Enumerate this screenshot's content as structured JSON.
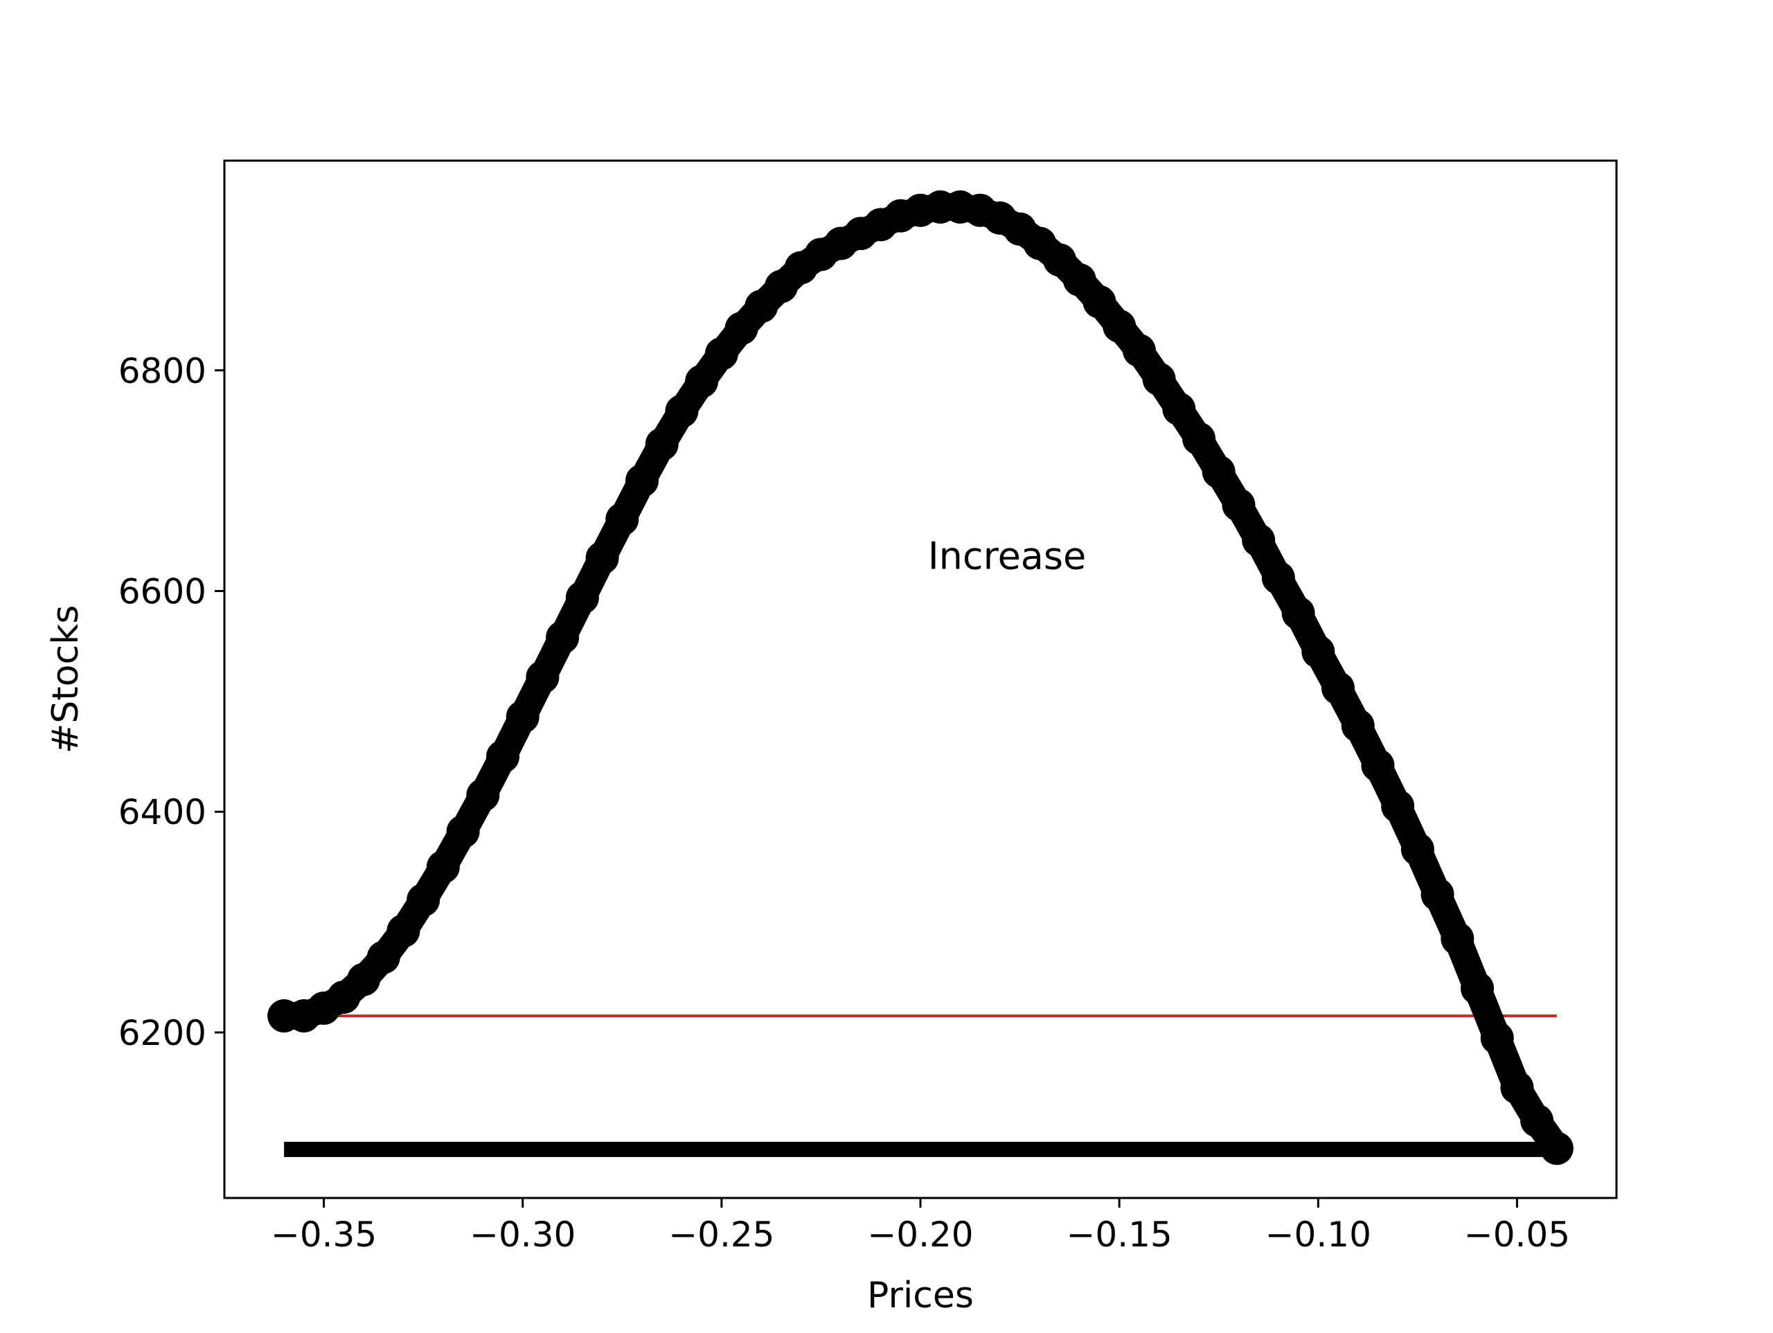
{
  "chart_data": {
    "type": "line",
    "title": "",
    "xlabel": "Prices",
    "ylabel": "#Stocks",
    "xlim": [
      -0.375,
      -0.025
    ],
    "ylim": [
      6050,
      6990
    ],
    "grid": false,
    "legend": "none",
    "x_ticks": [
      -0.35,
      -0.3,
      -0.25,
      -0.2,
      -0.15,
      -0.1,
      -0.05
    ],
    "x_tick_labels": [
      "−0.35",
      "−0.30",
      "−0.25",
      "−0.20",
      "−0.15",
      "−0.10",
      "−0.05"
    ],
    "y_ticks": [
      6200,
      6400,
      6600,
      6800
    ],
    "y_tick_labels": [
      "6200",
      "6400",
      "6600",
      "6800"
    ],
    "annotations": [
      {
        "text": "Increase",
        "x": -0.2,
        "y": 6620
      }
    ],
    "series": [
      {
        "style": "thick-line-with-markers",
        "color": "#000000",
        "x": [
          -0.36,
          -0.355,
          -0.35,
          -0.345,
          -0.34,
          -0.335,
          -0.33,
          -0.325,
          -0.32,
          -0.315,
          -0.31,
          -0.305,
          -0.3,
          -0.295,
          -0.29,
          -0.285,
          -0.28,
          -0.275,
          -0.27,
          -0.265,
          -0.26,
          -0.255,
          -0.25,
          -0.245,
          -0.24,
          -0.235,
          -0.23,
          -0.225,
          -0.22,
          -0.215,
          -0.21,
          -0.205,
          -0.2,
          -0.195,
          -0.19,
          -0.185,
          -0.18,
          -0.175,
          -0.17,
          -0.165,
          -0.16,
          -0.155,
          -0.15,
          -0.145,
          -0.14,
          -0.135,
          -0.13,
          -0.125,
          -0.12,
          -0.115,
          -0.11,
          -0.105,
          -0.1,
          -0.095,
          -0.09,
          -0.085,
          -0.08,
          -0.075,
          -0.07,
          -0.065,
          -0.06,
          -0.055,
          -0.05,
          -0.045,
          -0.04
        ],
        "y": [
          6215,
          6215,
          6222,
          6232,
          6248,
          6268,
          6292,
          6320,
          6350,
          6382,
          6415,
          6450,
          6486,
          6522,
          6558,
          6594,
          6630,
          6665,
          6700,
          6733,
          6763,
          6790,
          6815,
          6838,
          6858,
          6876,
          6893,
          6905,
          6915,
          6924,
          6932,
          6940,
          6945,
          6948,
          6948,
          6945,
          6938,
          6928,
          6915,
          6900,
          6882,
          6862,
          6840,
          6818,
          6792,
          6765,
          6738,
          6708,
          6678,
          6646,
          6612,
          6580,
          6545,
          6512,
          6478,
          6442,
          6405,
          6366,
          6325,
          6285,
          6240,
          6195,
          6150,
          6120,
          6095
        ]
      },
      {
        "style": "thin-line",
        "color": "#d62728",
        "x": [
          -0.36,
          -0.04
        ],
        "y": [
          6215,
          6215
        ]
      },
      {
        "style": "thin-line",
        "color": "#17becf",
        "x": [
          -0.36,
          -0.04
        ],
        "y": [
          6099,
          6099
        ]
      },
      {
        "style": "thick-line",
        "color": "#000000",
        "x": [
          -0.36,
          -0.04
        ],
        "y": [
          6094,
          6094
        ]
      }
    ]
  }
}
